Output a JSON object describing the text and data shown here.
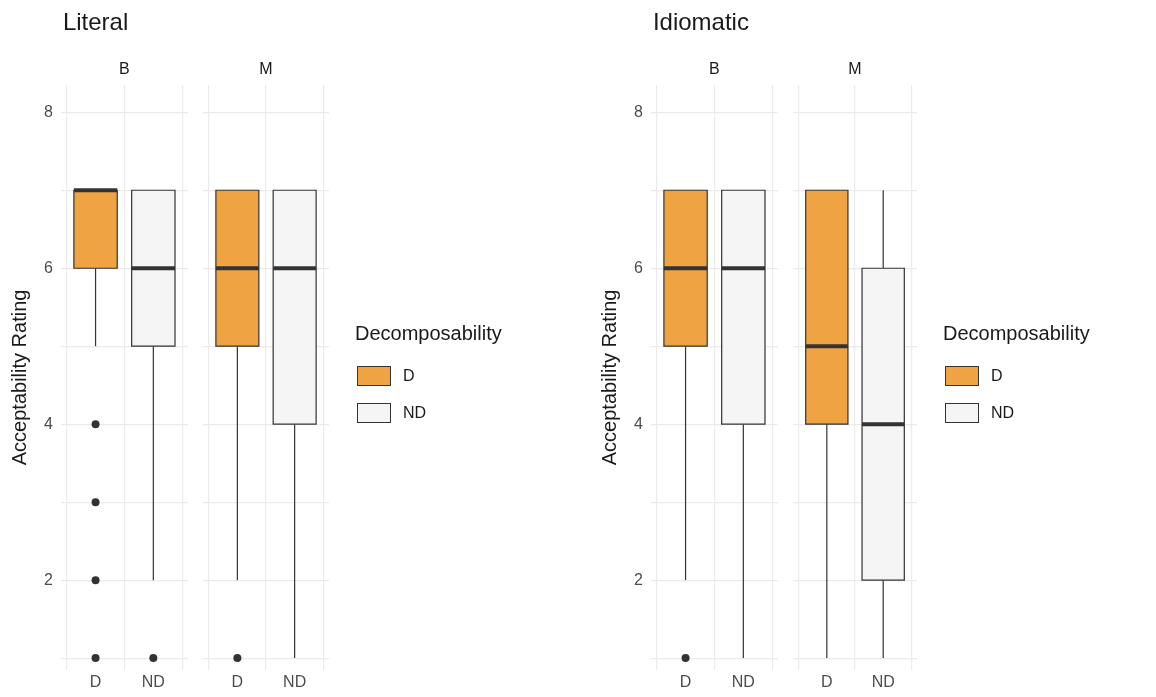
{
  "chart_data": [
    {
      "type": "box",
      "title": "Literal",
      "subtitle": "B",
      "ylabel": "Acceptability Rating",
      "categories": [
        "D",
        "ND"
      ],
      "ylim": [
        0.85,
        8.35
      ],
      "yticks": [
        {
          "value": 1,
          "label": null
        },
        2,
        {
          "value": 3,
          "label": null
        },
        4,
        {
          "value": 5,
          "label": null
        },
        6,
        {
          "value": 7,
          "label": null
        },
        8
      ],
      "grid": true,
      "series": [
        {
          "color": "#f0a342",
          "boxes": [
            {
              "low": 5,
              "q1": 6,
              "median": 7,
              "q3": 7,
              "high": 7,
              "outliers": [
                4,
                3,
                2,
                1
              ]
            },
            null
          ]
        },
        {
          "color": "#f5f5f5",
          "boxes": [
            null,
            {
              "low": 2,
              "q1": 5,
              "median": 6,
              "q3": 7,
              "high": 7,
              "outliers": [
                1
              ]
            }
          ]
        }
      ]
    },
    {
      "type": "box",
      "subtitle": "M",
      "legend": "right",
      "legend_title": "Decomposability",
      "categories": [
        "D",
        "ND"
      ],
      "ylim": [
        0.85,
        8.35
      ],
      "yticks": [
        {
          "value": 1,
          "label": null
        },
        2,
        {
          "value": 3,
          "label": null
        },
        4,
        {
          "value": 5,
          "label": null
        },
        6,
        {
          "value": 7,
          "label": null
        },
        8
      ],
      "grid": true,
      "tick_labels": "x",
      "series": [
        {
          "name": "D",
          "color": "#f0a342",
          "boxes": [
            {
              "low": 2,
              "q1": 5,
              "median": 6,
              "q3": 7,
              "high": 7,
              "outliers": [
                1
              ]
            },
            null
          ]
        },
        {
          "name": "ND",
          "color": "#f5f5f5",
          "boxes": [
            null,
            {
              "low": 1,
              "q1": 4,
              "median": 6,
              "q3": 7,
              "high": 7
            }
          ]
        }
      ]
    },
    {
      "type": "box",
      "title": "Idiomatic",
      "subtitle": "B",
      "ylabel": "Acceptability Rating",
      "categories": [
        "D",
        "ND"
      ],
      "ylim": [
        0.85,
        8.35
      ],
      "yticks": [
        {
          "value": 1,
          "label": null
        },
        2,
        {
          "value": 3,
          "label": null
        },
        4,
        {
          "value": 5,
          "label": null
        },
        6,
        {
          "value": 7,
          "label": null
        },
        8
      ],
      "grid": true,
      "series": [
        {
          "color": "#f0a342",
          "boxes": [
            {
              "low": 2,
              "q1": 5,
              "median": 6,
              "q3": 7,
              "high": 7,
              "outliers": [
                1
              ]
            },
            null
          ]
        },
        {
          "color": "#f5f5f5",
          "boxes": [
            null,
            {
              "low": 1,
              "q1": 4,
              "median": 6,
              "q3": 7,
              "high": 7
            }
          ]
        }
      ]
    },
    {
      "type": "box",
      "subtitle": "M",
      "legend": "right",
      "legend_title": "Decomposability",
      "categories": [
        "D",
        "ND"
      ],
      "ylim": [
        0.85,
        8.35
      ],
      "yticks": [
        {
          "value": 1,
          "label": null
        },
        2,
        {
          "value": 3,
          "label": null
        },
        4,
        {
          "value": 5,
          "label": null
        },
        6,
        {
          "value": 7,
          "label": null
        },
        8
      ],
      "grid": true,
      "tick_labels": "x",
      "series": [
        {
          "name": "D",
          "color": "#f0a342",
          "boxes": [
            {
              "low": 1,
              "q1": 4,
              "median": 5,
              "q3": 7,
              "high": 7
            },
            null
          ]
        },
        {
          "name": "ND",
          "color": "#f5f5f5",
          "boxes": [
            null,
            {
              "low": 1,
              "q1": 2,
              "median": 4,
              "q3": 6,
              "high": 7
            }
          ]
        }
      ]
    }
  ]
}
